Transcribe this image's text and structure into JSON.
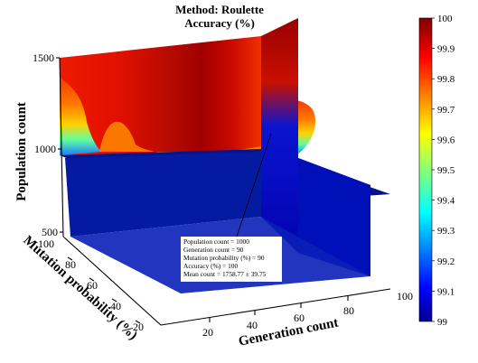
{
  "chart_data": {
    "type": "heatmap",
    "subtype": "3d-slice",
    "title": [
      "Method: Roulette",
      "Accuracy (%)"
    ],
    "xlabel": "Generation count",
    "ylabel": "Mutation probability (%)",
    "zlabel": "Population count",
    "x_ticks": [
      "20",
      "40",
      "60",
      "80",
      "100"
    ],
    "y_ticks": [
      "20",
      "40",
      "60",
      "80",
      "100"
    ],
    "z_ticks": [
      "500",
      "1000",
      "1500"
    ],
    "xlim": [
      10,
      100
    ],
    "ylim": [
      10,
      100
    ],
    "zlim": [
      500,
      1500
    ],
    "colorbar": {
      "min": 99,
      "max": 100,
      "ticks": [
        "99",
        "99.1",
        "99.2",
        "99.3",
        "99.4",
        "99.5",
        "99.6",
        "99.7",
        "99.8",
        "99.9",
        "100"
      ],
      "colormap": "jet"
    },
    "back_plane": {
      "population_count": 1500,
      "mutation_probability": 100,
      "top_accuracy_by_generation": [
        {
          "generation": 10,
          "accuracy": 99.93
        },
        {
          "generation": 20,
          "accuracy": 99.94
        },
        {
          "generation": 30,
          "accuracy": 99.95
        },
        {
          "generation": 40,
          "accuracy": 99.96
        },
        {
          "generation": 50,
          "accuracy": 99.97
        },
        {
          "generation": 60,
          "accuracy": 99.98
        },
        {
          "generation": 70,
          "accuracy": 99.99
        },
        {
          "generation": 80,
          "accuracy": 99.97
        },
        {
          "generation": 90,
          "accuracy": 99.95
        },
        {
          "generation": 100,
          "accuracy": 99.93
        }
      ]
    },
    "highlight": {
      "population_count": 1000,
      "generation_count": 90,
      "mutation_probability": 90,
      "accuracy": 100,
      "mean_count": "1758.77 ± 39.75"
    },
    "annotation": [
      "Population count = 1000",
      "Generation count = 90",
      "Mutation probability (%) = 90",
      "Accuracy (%) = 100",
      "Mean count = 1758.77 ± 39.75"
    ]
  }
}
